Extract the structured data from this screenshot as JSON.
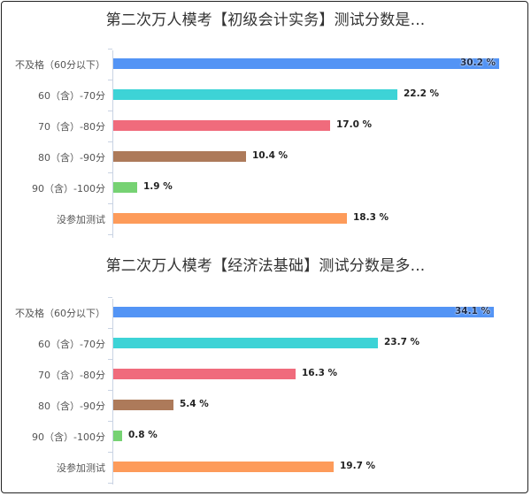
{
  "colors": {
    "blue": "#5394f5",
    "cyan": "#3dd3d6",
    "red": "#f06b7c",
    "brown": "#ad7a5a",
    "green": "#76d273",
    "orange": "#fd9b5a"
  },
  "chart_data": [
    {
      "type": "bar",
      "orientation": "horizontal",
      "title": "第二次万人模考【初级会计实务】测试分数是...",
      "categories": [
        "不及格（60分以下）",
        "60（含）-70分",
        "70（含）-80分",
        "80（含）-90分",
        "90（含）-100分",
        "没参加测试"
      ],
      "values": [
        30.2,
        22.2,
        17.0,
        10.4,
        1.9,
        18.3
      ],
      "value_labels": [
        "30.2 %",
        "22.2 %",
        "17.0 %",
        "10.4 %",
        "1.9 %",
        "18.3 %"
      ],
      "unit": "%",
      "xlabel": "",
      "ylabel": "",
      "grid": false,
      "legend": null
    },
    {
      "type": "bar",
      "orientation": "horizontal",
      "title": "第二次万人模考【经济法基础】测试分数是多...",
      "categories": [
        "不及格（60分以下）",
        "60（含）-70分",
        "70（含）-80分",
        "80（含）-90分",
        "90（含）-100分",
        "没参加测试"
      ],
      "values": [
        34.1,
        23.7,
        16.3,
        5.4,
        0.8,
        19.7
      ],
      "value_labels": [
        "34.1 %",
        "23.7 %",
        "16.3 %",
        "5.4 %",
        "0.8 %",
        "19.7 %"
      ],
      "unit": "%",
      "xlabel": "",
      "ylabel": "",
      "grid": false,
      "legend": null
    }
  ]
}
